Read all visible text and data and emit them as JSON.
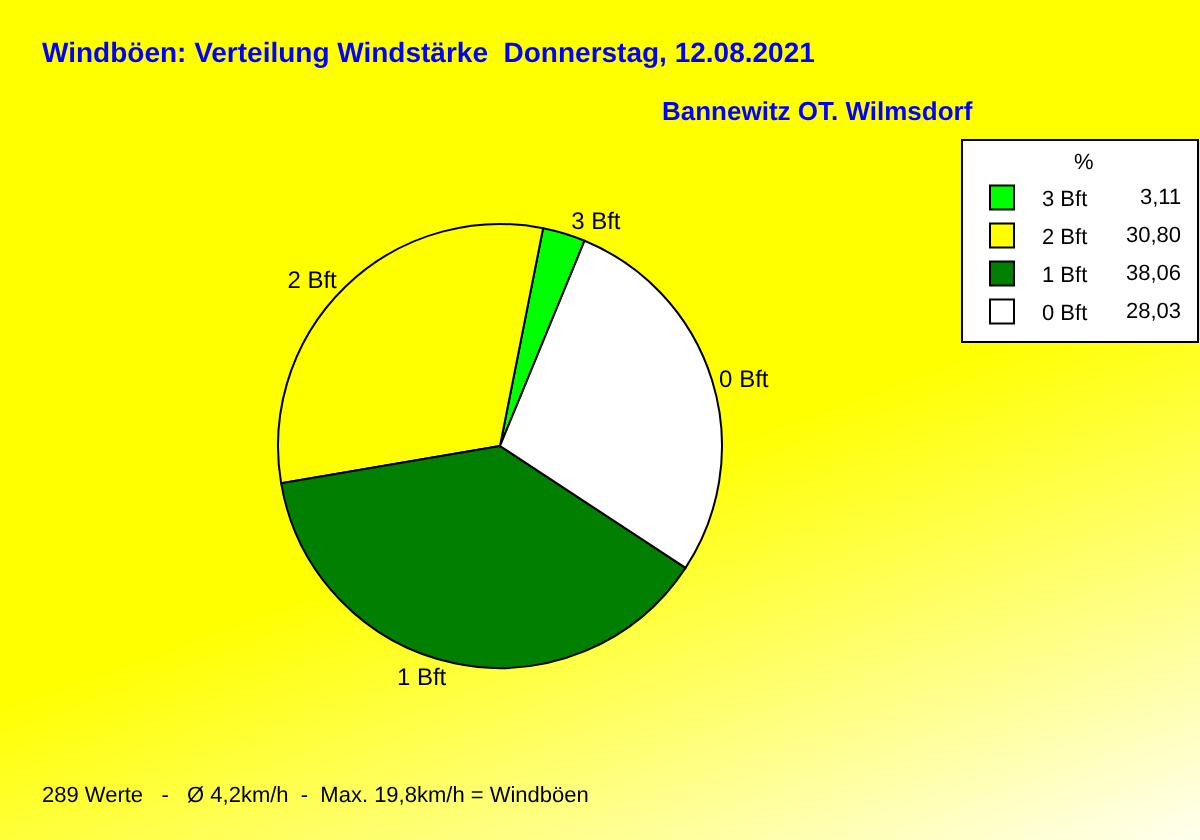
{
  "chart_data": {
    "type": "pie",
    "title": "Windböen: Verteilung Windstärke  Donnerstag, 12.08.2021",
    "subtitle": "Bannewitz OT. Wilmsdorf",
    "categories": [
      "3 Bft",
      "2 Bft",
      "1 Bft",
      "0 Bft"
    ],
    "values": [
      3.11,
      30.8,
      38.06,
      28.03
    ],
    "value_labels": [
      "3,11",
      "30,80",
      "38,06",
      "28,03"
    ],
    "colors": [
      "#00ff00",
      "#ffff00",
      "#007f00",
      "#ffffff"
    ],
    "legend_title": "%",
    "legend": "top right",
    "annotations": [
      "289 Werte   -   Ø 4,2km/h  -  Max. 19,8km/h = Windböen"
    ]
  }
}
